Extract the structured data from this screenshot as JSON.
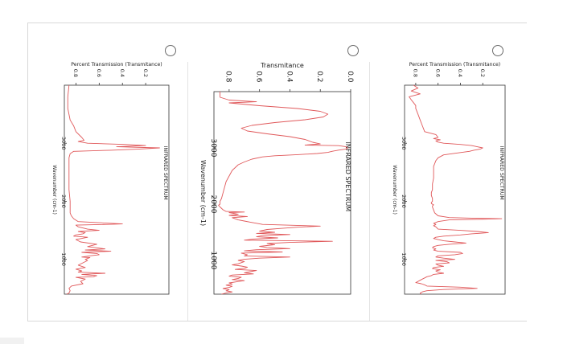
{
  "question": {
    "options": [
      {
        "id": "option-left",
        "selected": false
      },
      {
        "id": "option-middle",
        "selected": false
      },
      {
        "id": "option-right",
        "selected": false
      }
    ]
  },
  "chart_data": [
    {
      "type": "line",
      "title": "INFRARED SPECTRUM",
      "xlabel": "Wavenumber (cm-1)",
      "ylabel": "Percent Transmission (Transmitance)",
      "xlim": [
        4000,
        400
      ],
      "ylim": [
        0.0,
        0.9
      ],
      "xticks": [
        3000,
        2000,
        1000
      ],
      "yticks": [
        0.2,
        0.4,
        0.6,
        0.8
      ],
      "color": "#e0585a",
      "series": [
        {
          "x": [
            4000,
            3800,
            3600,
            3400,
            3300,
            3200,
            3100,
            3050,
            3030,
            3000,
            2980,
            2960,
            2940,
            2920,
            2900,
            2880,
            2860,
            2820,
            2750,
            2600,
            2400,
            2200,
            2000,
            1900,
            1800,
            1750,
            1700,
            1650,
            1610,
            1600,
            1590,
            1560,
            1520,
            1500,
            1480,
            1460,
            1440,
            1420,
            1400,
            1380,
            1340,
            1300,
            1260,
            1220,
            1180,
            1160,
            1140,
            1120,
            1100,
            1080,
            1060,
            1040,
            1030,
            1000,
            980,
            940,
            900,
            860,
            830,
            800,
            780,
            760,
            740,
            720,
            700,
            690,
            660,
            620,
            580,
            540,
            500,
            460,
            420,
            400
          ],
          "y": [
            0.86,
            0.87,
            0.87,
            0.85,
            0.82,
            0.8,
            0.75,
            0.73,
            0.78,
            0.7,
            0.38,
            0.2,
            0.45,
            0.08,
            0.25,
            0.5,
            0.82,
            0.85,
            0.86,
            0.86,
            0.86,
            0.86,
            0.85,
            0.85,
            0.85,
            0.84,
            0.82,
            0.78,
            0.4,
            0.55,
            0.8,
            0.78,
            0.7,
            0.6,
            0.78,
            0.72,
            0.74,
            0.8,
            0.82,
            0.7,
            0.8,
            0.76,
            0.62,
            0.7,
            0.55,
            0.72,
            0.5,
            0.75,
            0.62,
            0.6,
            0.68,
            0.75,
            0.68,
            0.72,
            0.7,
            0.74,
            0.78,
            0.72,
            0.8,
            0.75,
            0.78,
            0.55,
            0.75,
            0.62,
            0.65,
            0.8,
            0.72,
            0.76,
            0.74,
            0.84,
            0.86,
            0.85,
            0.86,
            0.88
          ]
        }
      ]
    },
    {
      "type": "line",
      "title": "INFRARED SPECTRUM",
      "xlabel": "Wavenumber (cm-1)",
      "ylabel": "Transmitance",
      "xlim": [
        4000,
        400
      ],
      "ylim": [
        0.0,
        0.9
      ],
      "xticks": [
        3000,
        2000,
        1000
      ],
      "yticks": [
        0.0,
        0.2,
        0.4,
        0.6,
        0.8
      ],
      "color": "#e0585a",
      "series": [
        {
          "x": [
            4000,
            3900,
            3850,
            3820,
            3800,
            3750,
            3700,
            3650,
            3600,
            3550,
            3500,
            3450,
            3400,
            3350,
            3300,
            3250,
            3200,
            3150,
            3100,
            3070,
            3050,
            3040,
            3020,
            3000,
            2980,
            2960,
            2940,
            2920,
            2900,
            2880,
            2860,
            2840,
            2800,
            2750,
            2700,
            2600,
            2500,
            2400,
            2300,
            2200,
            2100,
            2050,
            2000,
            1980,
            1950,
            1900,
            1870,
            1860,
            1850,
            1820,
            1800,
            1780,
            1760,
            1720,
            1700,
            1680,
            1660,
            1640,
            1610,
            1590,
            1570,
            1550,
            1520,
            1500,
            1480,
            1460,
            1440,
            1420,
            1400,
            1380,
            1360,
            1340,
            1320,
            1300,
            1280,
            1250,
            1230,
            1210,
            1190,
            1170,
            1150,
            1130,
            1100,
            1080,
            1060,
            1040,
            1020,
            1000,
            980,
            960,
            940,
            920,
            900,
            880,
            860,
            840,
            820,
            800,
            780,
            760,
            740,
            720,
            700,
            680,
            660,
            640,
            620,
            600,
            580,
            560,
            540,
            520,
            500,
            480,
            460,
            440,
            420,
            400
          ],
          "y": [
            0.86,
            0.86,
            0.8,
            0.62,
            0.8,
            0.6,
            0.35,
            0.2,
            0.15,
            0.18,
            0.3,
            0.5,
            0.65,
            0.72,
            0.68,
            0.55,
            0.4,
            0.3,
            0.25,
            0.2,
            0.3,
            0.08,
            0.03,
            0.02,
            0.03,
            0.08,
            0.12,
            0.15,
            0.22,
            0.35,
            0.5,
            0.58,
            0.65,
            0.7,
            0.74,
            0.78,
            0.8,
            0.82,
            0.83,
            0.84,
            0.85,
            0.86,
            0.86,
            0.87,
            0.86,
            0.84,
            0.82,
            0.7,
            0.8,
            0.74,
            0.8,
            0.68,
            0.78,
            0.74,
            0.7,
            0.66,
            0.62,
            0.58,
            0.2,
            0.35,
            0.45,
            0.55,
            0.6,
            0.5,
            0.62,
            0.4,
            0.58,
            0.62,
            0.48,
            0.64,
            0.7,
            0.12,
            0.4,
            0.55,
            0.5,
            0.6,
            0.55,
            0.4,
            0.62,
            0.7,
            0.45,
            0.72,
            0.68,
            0.7,
            0.4,
            0.6,
            0.7,
            0.74,
            0.7,
            0.72,
            0.74,
            0.78,
            0.72,
            0.68,
            0.7,
            0.76,
            0.62,
            0.66,
            0.7,
            0.64,
            0.78,
            0.8,
            0.72,
            0.74,
            0.78,
            0.7,
            0.75,
            0.8,
            0.78,
            0.82,
            0.78,
            0.8,
            0.84,
            0.8,
            0.82,
            0.78,
            0.82,
            0.85
          ]
        }
      ]
    },
    {
      "type": "line",
      "title": "INFRARED SPECTRUM",
      "xlabel": "Wavenumber (cm-1)",
      "ylabel": "Percent Transmission (Transmitance)",
      "xlim": [
        4000,
        400
      ],
      "ylim": [
        0.0,
        0.9
      ],
      "xticks": [
        3000,
        2000,
        1000
      ],
      "yticks": [
        0.2,
        0.4,
        0.6,
        0.8
      ],
      "color": "#e0585a",
      "series": [
        {
          "x": [
            4000,
            3950,
            3900,
            3850,
            3800,
            3750,
            3700,
            3650,
            3600,
            3500,
            3400,
            3300,
            3200,
            3150,
            3100,
            3080,
            3060,
            3040,
            3020,
            3000,
            2980,
            2960,
            2940,
            2920,
            2900,
            2880,
            2860,
            2840,
            2800,
            2750,
            2700,
            2600,
            2500,
            2400,
            2300,
            2200,
            2150,
            2100,
            2050,
            2000,
            1980,
            1960,
            1940,
            1920,
            1900,
            1800,
            1750,
            1720,
            1710,
            1700,
            1690,
            1680,
            1650,
            1620,
            1600,
            1580,
            1560,
            1520,
            1500,
            1480,
            1460,
            1450,
            1440,
            1420,
            1400,
            1380,
            1360,
            1340,
            1320,
            1300,
            1280,
            1260,
            1240,
            1220,
            1200,
            1180,
            1160,
            1140,
            1120,
            1100,
            1080,
            1060,
            1040,
            1020,
            1000,
            980,
            960,
            940,
            920,
            900,
            880,
            860,
            840,
            820,
            800,
            780,
            760,
            740,
            720,
            700,
            680,
            660,
            640,
            620,
            600,
            580,
            560,
            540,
            520,
            500,
            480,
            460,
            440,
            420,
            400
          ],
          "y": [
            0.82,
            0.78,
            0.84,
            0.76,
            0.86,
            0.84,
            0.82,
            0.8,
            0.8,
            0.78,
            0.76,
            0.74,
            0.72,
            0.62,
            0.6,
            0.64,
            0.58,
            0.62,
            0.6,
            0.55,
            0.4,
            0.3,
            0.25,
            0.2,
            0.22,
            0.28,
            0.32,
            0.4,
            0.55,
            0.6,
            0.62,
            0.64,
            0.64,
            0.64,
            0.65,
            0.65,
            0.66,
            0.66,
            0.65,
            0.65,
            0.66,
            0.66,
            0.64,
            0.65,
            0.65,
            0.63,
            0.6,
            0.5,
            0.3,
            0.03,
            0.2,
            0.5,
            0.6,
            0.64,
            0.62,
            0.64,
            0.62,
            0.6,
            0.4,
            0.25,
            0.15,
            0.22,
            0.3,
            0.4,
            0.55,
            0.62,
            0.64,
            0.6,
            0.55,
            0.45,
            0.35,
            0.5,
            0.6,
            0.64,
            0.65,
            0.62,
            0.64,
            0.6,
            0.4,
            0.38,
            0.45,
            0.6,
            0.62,
            0.55,
            0.45,
            0.62,
            0.52,
            0.5,
            0.62,
            0.6,
            0.55,
            0.64,
            0.65,
            0.58,
            0.62,
            0.6,
            0.55,
            0.64,
            0.66,
            0.7,
            0.72,
            0.74,
            0.76,
            0.78,
            0.8,
            0.75,
            0.72,
            0.7,
            0.4,
            0.25,
            0.55,
            0.7,
            0.74,
            0.76,
            0.75
          ]
        }
      ]
    }
  ]
}
